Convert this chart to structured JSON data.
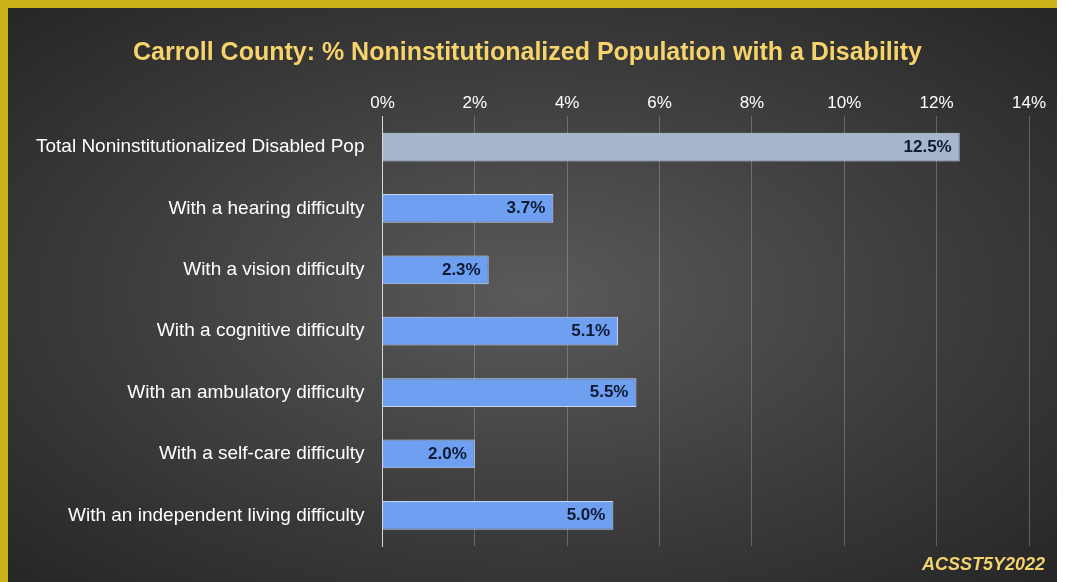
{
  "chart_data": {
    "type": "bar",
    "orientation": "horizontal",
    "title": "Carroll County: % Noninstitutionalized Population with a Disability",
    "categories": [
      "Total Noninstitutionalized Disabled Pop",
      "With a hearing difficulty",
      "With a vision difficulty",
      "With a cognitive difficulty",
      "With an ambulatory difficulty",
      "With a self-care difficulty",
      "With an independent living difficulty"
    ],
    "values": [
      12.5,
      3.7,
      2.3,
      5.1,
      5.5,
      2.0,
      5.0
    ],
    "value_labels": [
      "12.5%",
      "3.7%",
      "2.3%",
      "5.1%",
      "5.5%",
      "2.0%",
      "5.0%"
    ],
    "colors": [
      "#a7b6cc",
      "#6f9ff0",
      "#6f9ff0",
      "#6f9ff0",
      "#6f9ff0",
      "#6f9ff0",
      "#6f9ff0"
    ],
    "xlim": [
      0,
      14
    ],
    "xticks": [
      {
        "value": 0,
        "label": "0%"
      },
      {
        "value": 2,
        "label": "2%"
      },
      {
        "value": 4,
        "label": "4%"
      },
      {
        "value": 6,
        "label": "6%"
      },
      {
        "value": 8,
        "label": "8%"
      },
      {
        "value": 10,
        "label": "10%"
      },
      {
        "value": 12,
        "label": "12%"
      },
      {
        "value": 14,
        "label": "14%"
      }
    ],
    "grid": "x",
    "legend": false,
    "annotations": [
      "ACSST5Y2022"
    ]
  }
}
